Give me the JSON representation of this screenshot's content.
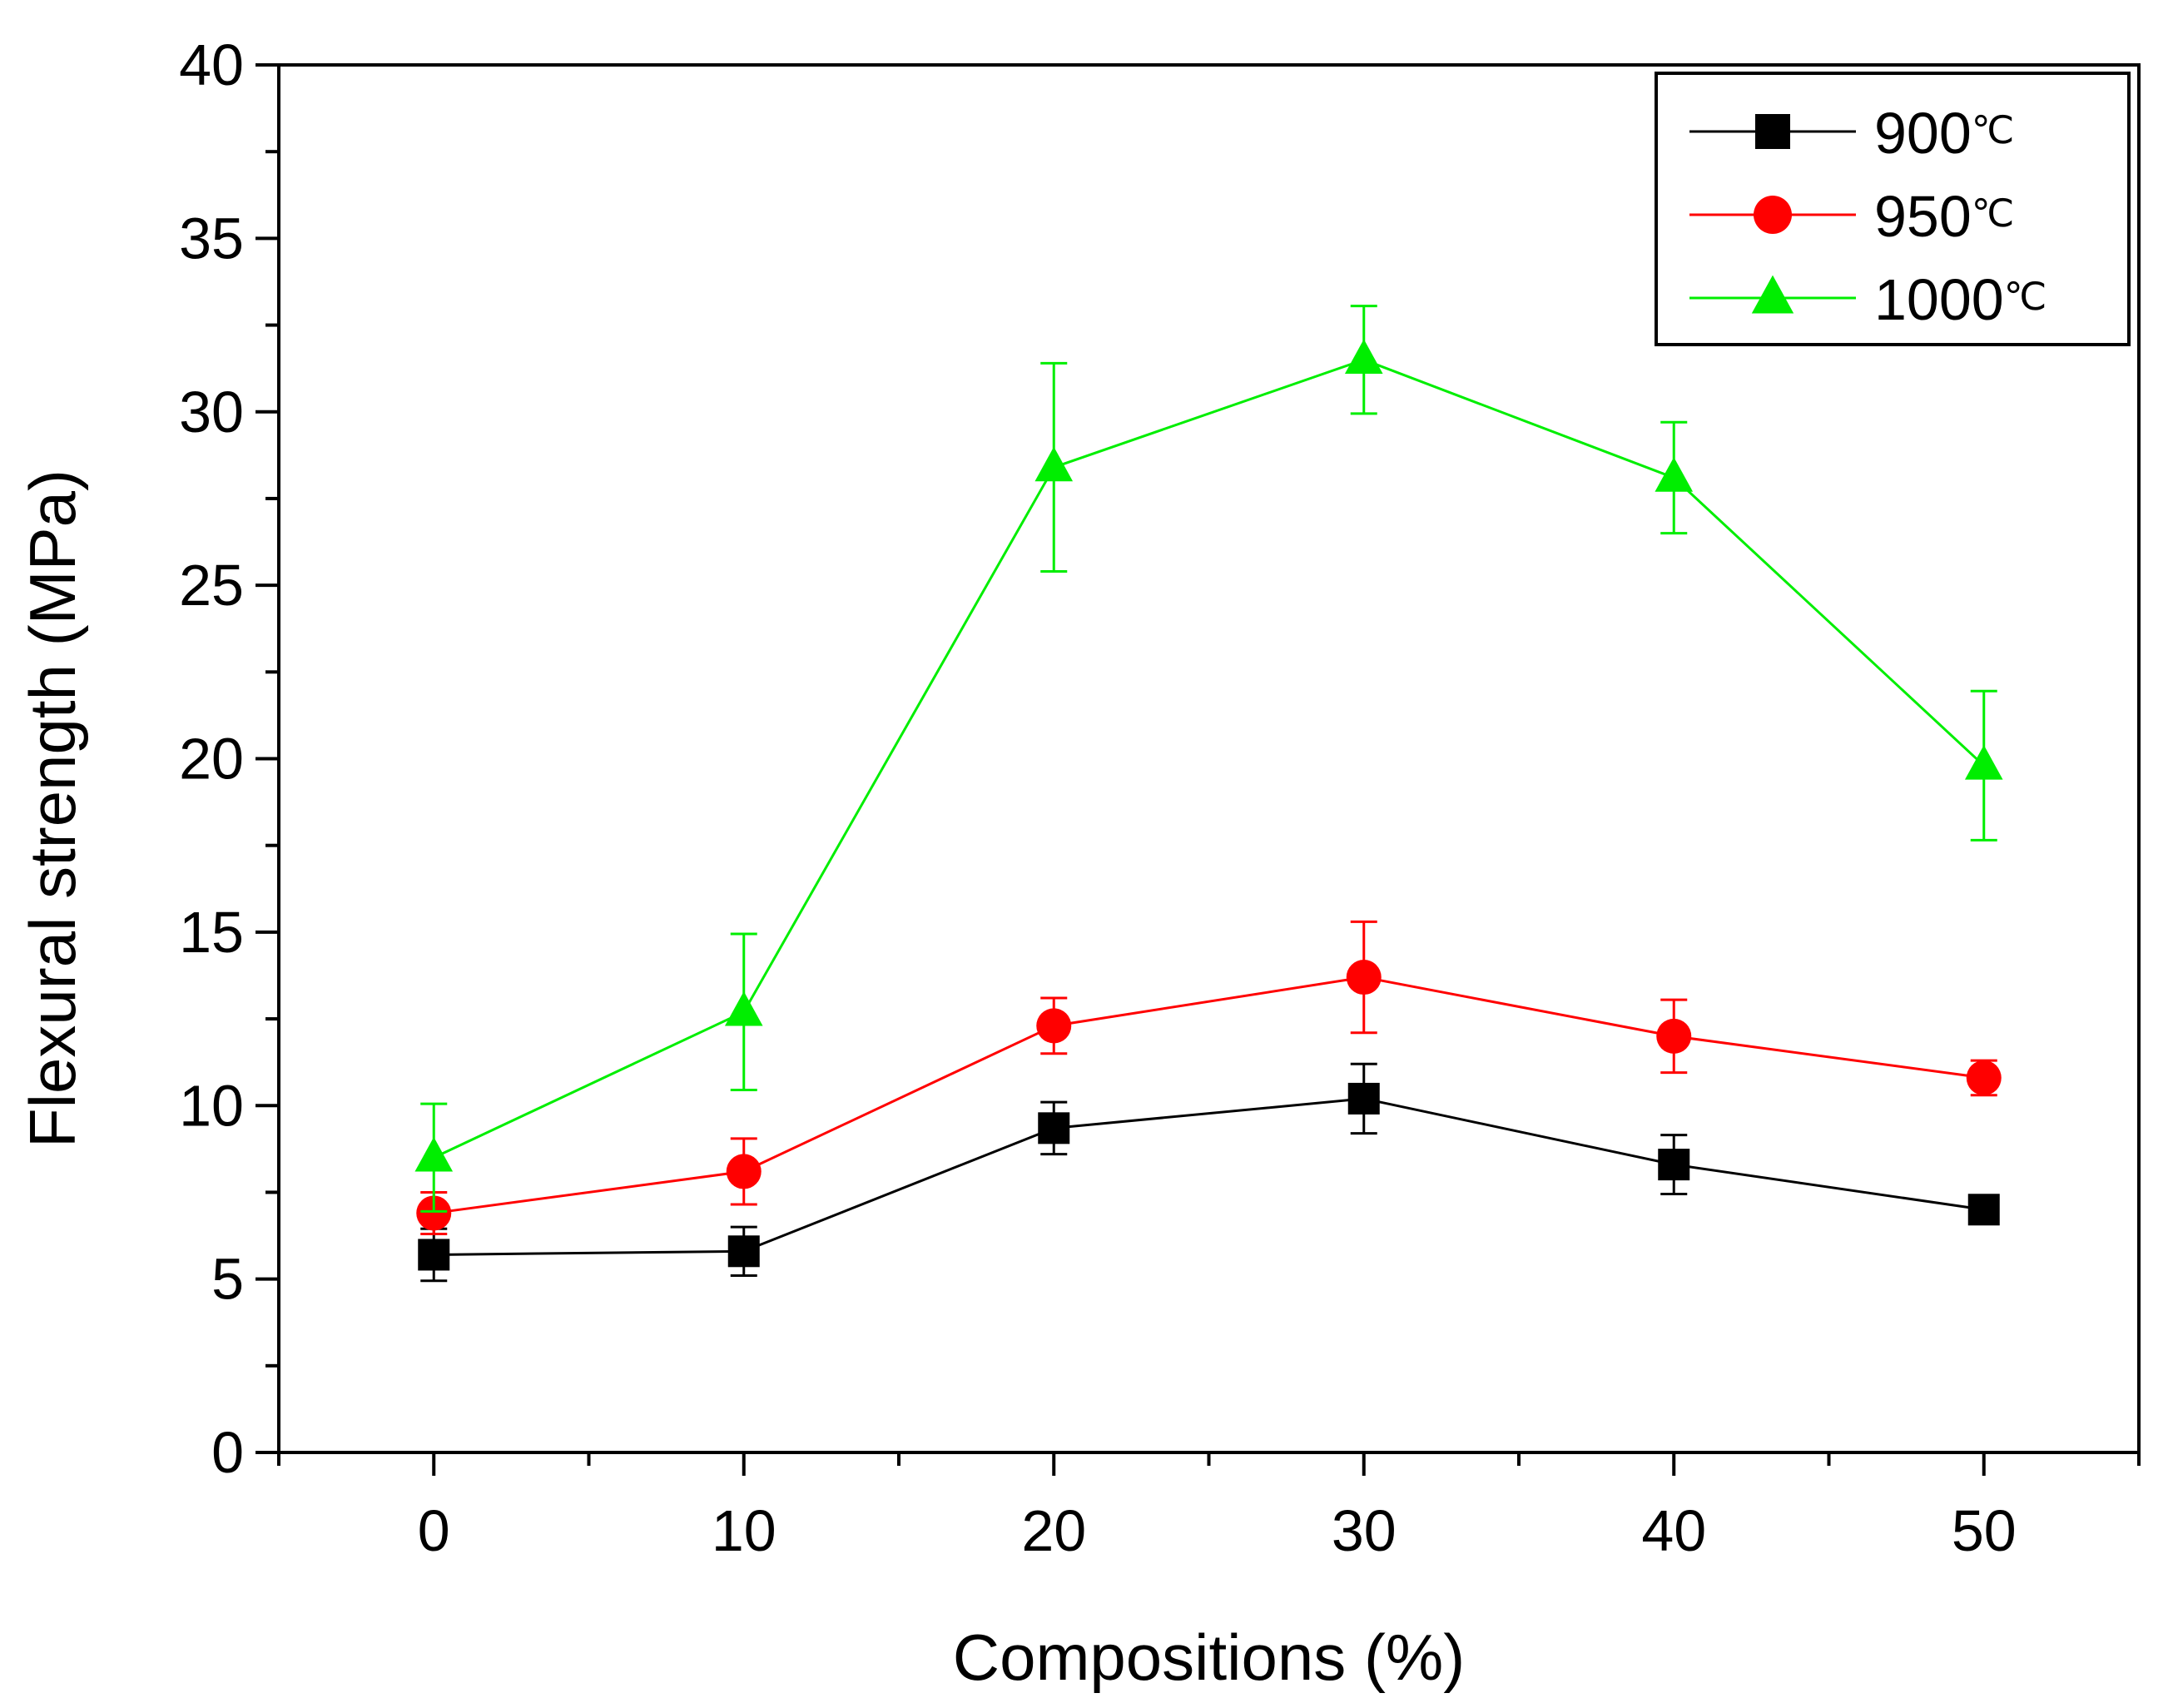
{
  "chart_data": {
    "type": "line",
    "title": "",
    "xlabel": "Compositions (%)",
    "ylabel": "Flexural strength (MPa)",
    "x": [
      0,
      10,
      20,
      30,
      40,
      50
    ],
    "xlim": [
      -5,
      55
    ],
    "ylim": [
      0,
      40
    ],
    "xticks": [
      0,
      10,
      20,
      30,
      40,
      50
    ],
    "yticks": [
      0,
      5,
      10,
      15,
      20,
      25,
      30,
      35,
      40
    ],
    "grid": false,
    "legend_position": "top-right",
    "series": [
      {
        "name": "900",
        "unit": "℃",
        "marker": "square",
        "color": "#000000",
        "values": [
          5.7,
          5.8,
          9.35,
          10.2,
          8.3,
          7.0
        ],
        "errors": [
          0.75,
          0.7,
          0.75,
          1.0,
          0.85,
          0.3
        ]
      },
      {
        "name": "950",
        "unit": "℃",
        "marker": "circle",
        "color": "#ff0000",
        "values": [
          6.9,
          8.1,
          12.3,
          13.7,
          12.0,
          10.8
        ],
        "errors": [
          0.6,
          0.95,
          0.8,
          1.6,
          1.05,
          0.5
        ]
      },
      {
        "name": "1000",
        "unit": "℃",
        "marker": "triangle",
        "color": "#00ee00",
        "values": [
          8.5,
          12.7,
          28.4,
          31.5,
          28.1,
          19.8
        ],
        "errors": [
          1.55,
          2.25,
          3.0,
          1.55,
          1.6,
          2.15
        ]
      }
    ]
  }
}
